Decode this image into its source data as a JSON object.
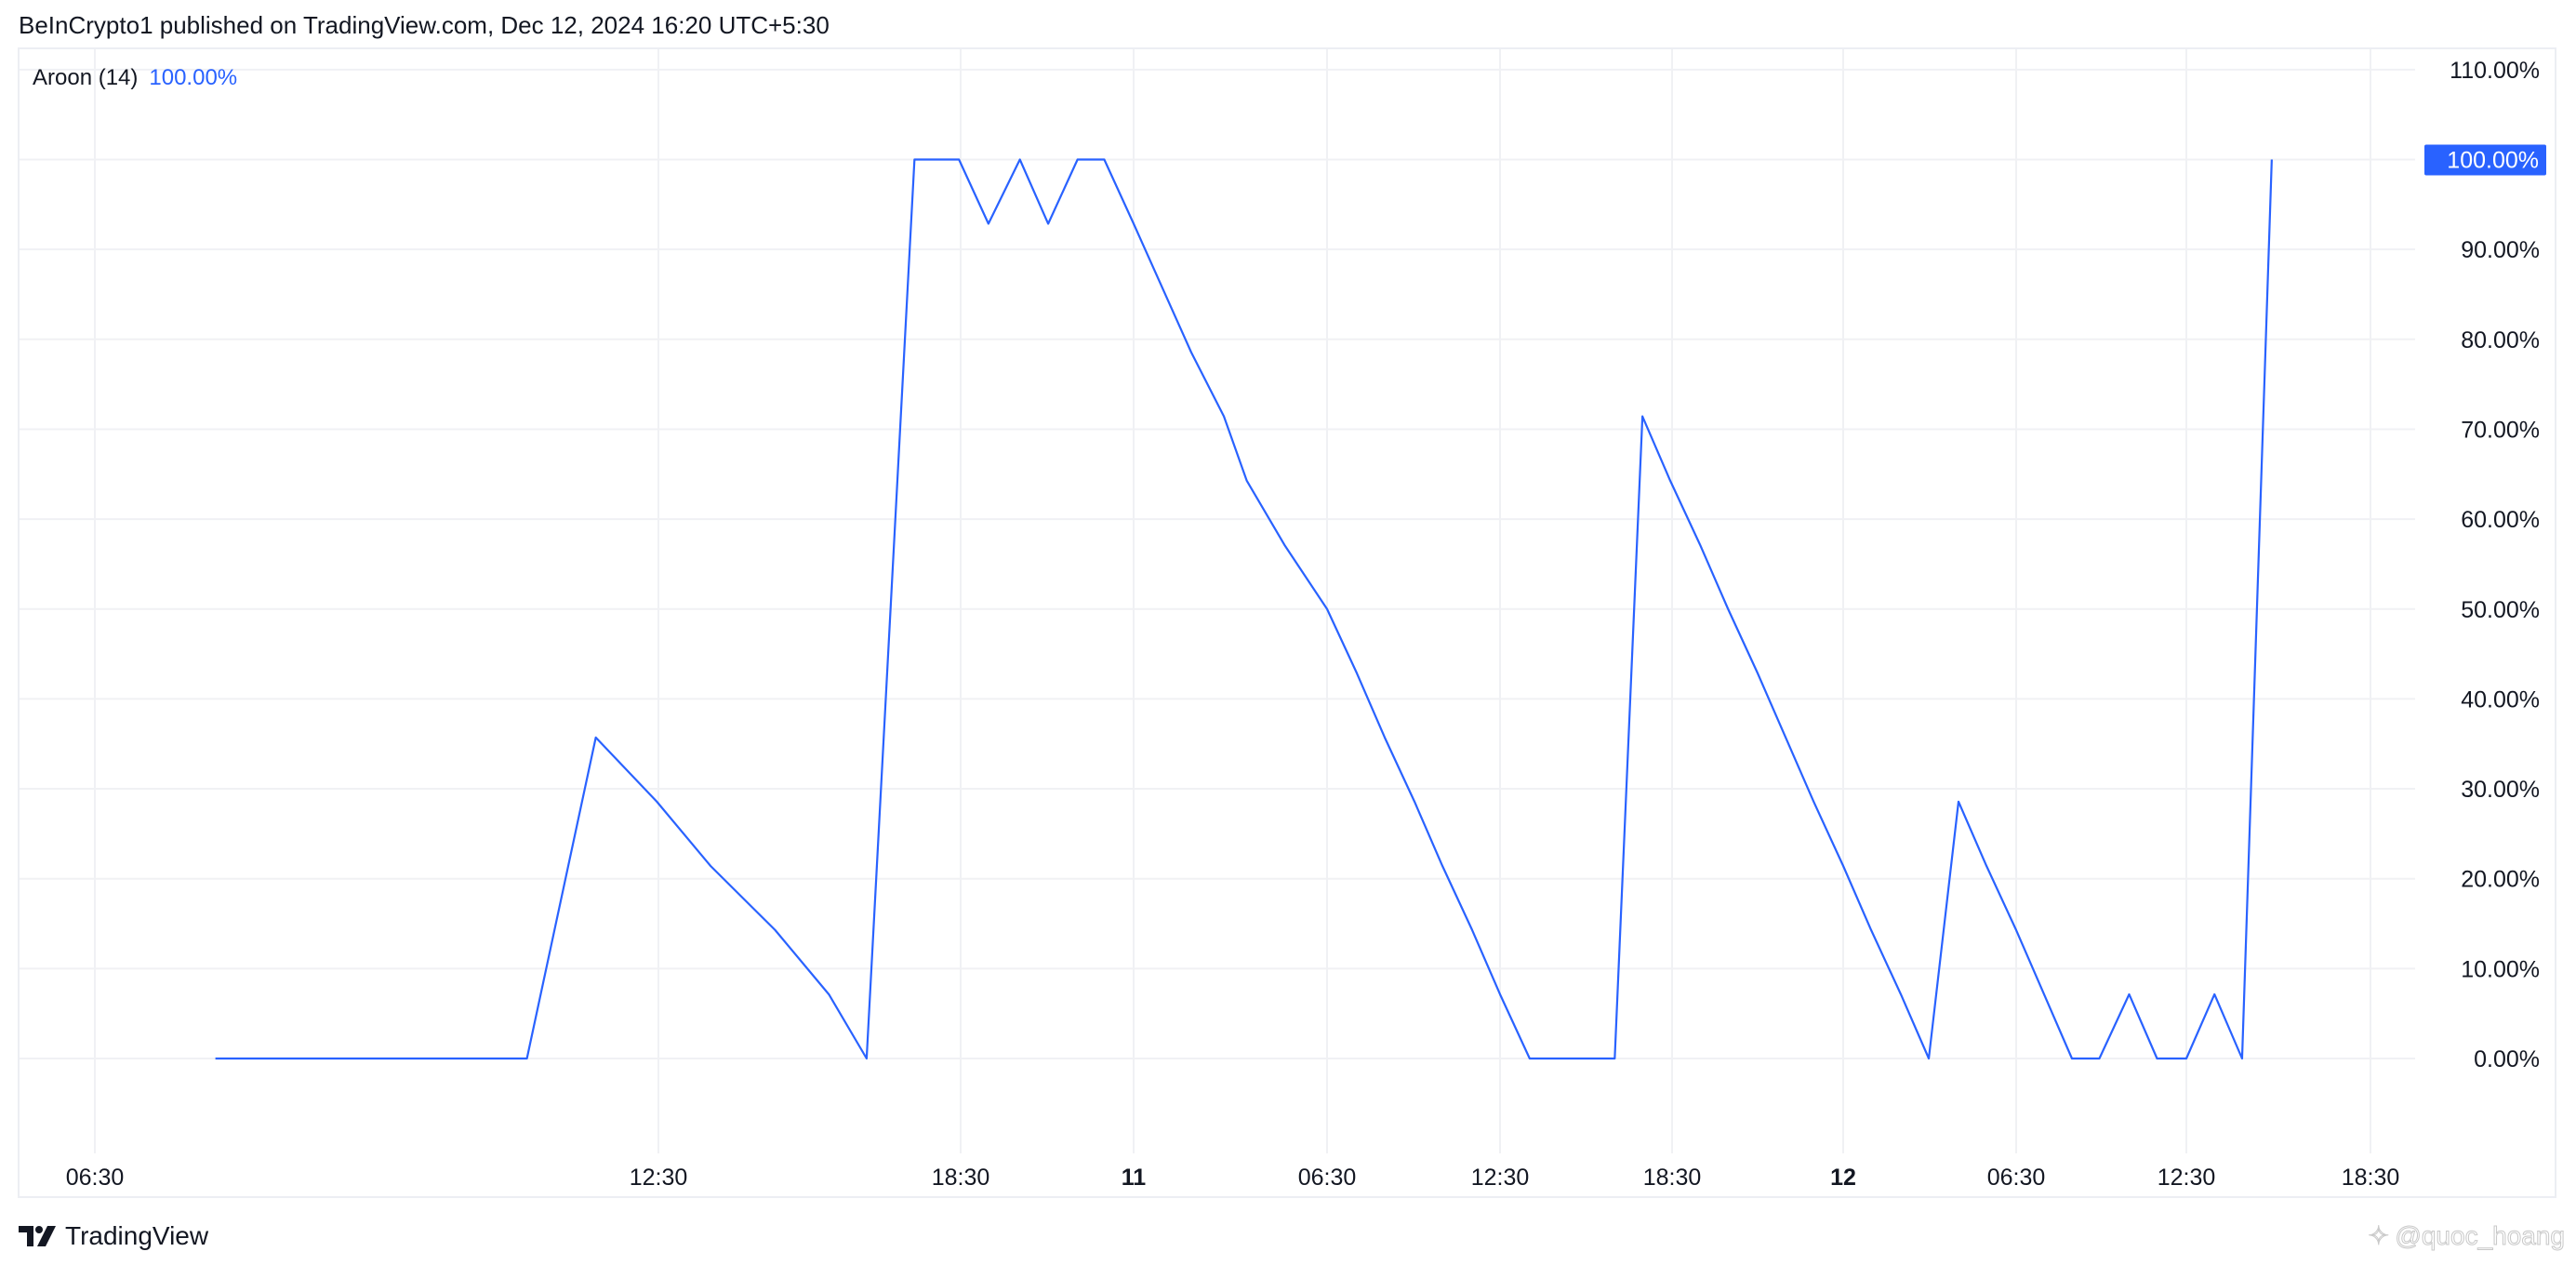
{
  "header": {
    "publisher_line": "BeInCrypto1 published on TradingView.com, Dec 12, 2024 16:20 UTC+5:30"
  },
  "legend": {
    "indicator": "Aroon (14)",
    "value": "100.00%",
    "value_color": "#2962ff"
  },
  "footer": {
    "brand": "TradingView",
    "logo_icon": "tradingview-logo-icon",
    "watermark": "@quoc_hoang"
  },
  "colors": {
    "line": "#2962ff",
    "grid": "#f0f1f4",
    "badge_bg": "#2962ff",
    "badge_text": "#ffffff"
  },
  "chart_data": {
    "type": "line",
    "title": "",
    "ylim": [
      -10,
      110
    ],
    "y_ticks": [
      "110.00%",
      "90.00%",
      "80.00%",
      "70.00%",
      "60.00%",
      "50.00%",
      "40.00%",
      "30.00%",
      "20.00%",
      "10.00%",
      "0.00%"
    ],
    "y_tick_values": [
      110,
      90,
      80,
      70,
      60,
      50,
      40,
      30,
      20,
      10,
      0
    ],
    "last_value_badge": {
      "value": 100,
      "label": "100.00%"
    },
    "x_ticks": [
      {
        "label": "06:30",
        "time": "12-10 06:30",
        "bold": false
      },
      {
        "label": "12:30",
        "time": "12-10 12:30",
        "bold": false
      },
      {
        "label": "18:30",
        "time": "12-10 18:30",
        "bold": false
      },
      {
        "label": "11",
        "time": "12-11 00:00",
        "bold": true
      },
      {
        "label": "06:30",
        "time": "12-11 06:30",
        "bold": false
      },
      {
        "label": "12:30",
        "time": "12-11 12:30",
        "bold": false
      },
      {
        "label": "18:30",
        "time": "12-11 18:30",
        "bold": false
      },
      {
        "label": "12",
        "time": "12-12 00:00",
        "bold": true
      },
      {
        "label": "06:30",
        "time": "12-12 06:30",
        "bold": false
      },
      {
        "label": "12:30",
        "time": "12-12 12:30",
        "bold": false
      },
      {
        "label": "18:30",
        "time": "12-12 18:30",
        "bold": false
      }
    ],
    "grid": true,
    "series": [
      {
        "points": [
          [
            "12-10 07:47",
            0
          ],
          [
            "12-10 11:06",
            0
          ],
          [
            "12-10 11:50",
            35.71
          ],
          [
            "12-10 12:29",
            28.57
          ],
          [
            "12-10 13:32",
            21.43
          ],
          [
            "12-10 14:49",
            14.29
          ],
          [
            "12-10 15:53",
            7.14
          ],
          [
            "12-10 16:38",
            0
          ],
          [
            "12-10 17:35",
            100
          ],
          [
            "12-10 18:28",
            100
          ],
          [
            "12-10 19:23",
            92.86
          ],
          [
            "12-10 20:23",
            100
          ],
          [
            "12-10 21:17",
            92.86
          ],
          [
            "12-10 22:13",
            100
          ],
          [
            "12-10 23:04",
            100
          ],
          [
            "12-11 00:00",
            92.86
          ],
          [
            "12-11 01:56",
            78.57
          ],
          [
            "12-11 03:02",
            71.43
          ],
          [
            "12-11 03:48",
            64.29
          ],
          [
            "12-11 05:04",
            57.14
          ],
          [
            "12-11 06:30",
            50
          ],
          [
            "12-11 07:32",
            42.86
          ],
          [
            "12-11 08:30",
            35.71
          ],
          [
            "12-11 09:32",
            28.57
          ],
          [
            "12-11 10:30",
            21.43
          ],
          [
            "12-11 11:32",
            14.29
          ],
          [
            "12-11 12:30",
            7.14
          ],
          [
            "12-11 13:32",
            0
          ],
          [
            "12-11 16:30",
            0
          ],
          [
            "12-11 17:28",
            71.43
          ],
          [
            "12-11 18:26",
            64.29
          ],
          [
            "12-11 19:24",
            57.14
          ],
          [
            "12-11 20:18",
            50
          ],
          [
            "12-11 21:15",
            42.86
          ],
          [
            "12-11 22:09",
            35.71
          ],
          [
            "12-11 23:03",
            28.57
          ],
          [
            "12-12 00:00",
            21.43
          ],
          [
            "12-12 01:03",
            14.29
          ],
          [
            "12-12 02:10",
            7.14
          ],
          [
            "12-12 03:13",
            0
          ],
          [
            "12-12 04:20",
            28.57
          ],
          [
            "12-12 05:23",
            21.43
          ],
          [
            "12-12 06:30",
            14.29
          ],
          [
            "12-12 07:29",
            7.14
          ],
          [
            "12-12 08:28",
            0
          ],
          [
            "12-12 09:26",
            0
          ],
          [
            "12-12 10:29",
            7.14
          ],
          [
            "12-12 11:28",
            0
          ],
          [
            "12-12 12:30",
            0
          ],
          [
            "12-12 13:25",
            7.14
          ],
          [
            "12-12 14:19",
            0
          ],
          [
            "12-12 15:17",
            100
          ]
        ]
      }
    ]
  }
}
